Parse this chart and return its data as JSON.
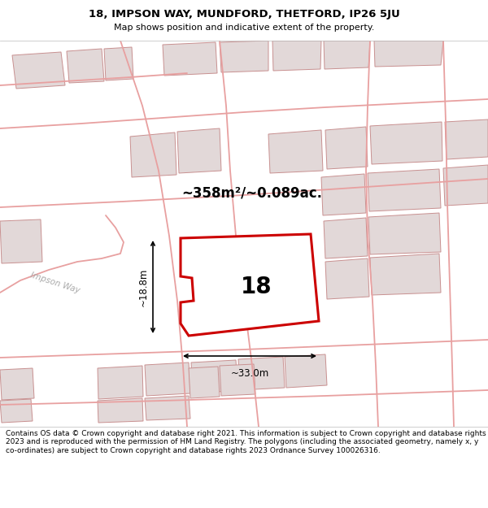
{
  "title_line1": "18, IMPSON WAY, MUNDFORD, THETFORD, IP26 5JU",
  "title_line2": "Map shows position and indicative extent of the property.",
  "footer_text": "Contains OS data © Crown copyright and database right 2021. This information is subject to Crown copyright and database rights 2023 and is reproduced with the permission of HM Land Registry. The polygons (including the associated geometry, namely x, y co-ordinates) are subject to Crown copyright and database rights 2023 Ordnance Survey 100026316.",
  "area_text": "~358m²/~0.089ac.",
  "label_text": "18",
  "dim_h": "~18.8m",
  "dim_w": "~33.0m",
  "road_label": "Impson Way",
  "highlight_color": "#cc0000",
  "road_color": "#e8a0a0",
  "building_fill": "#e2d8d8",
  "building_stroke": "#c89090",
  "map_bg": "#ede8e8",
  "white": "#ffffff"
}
